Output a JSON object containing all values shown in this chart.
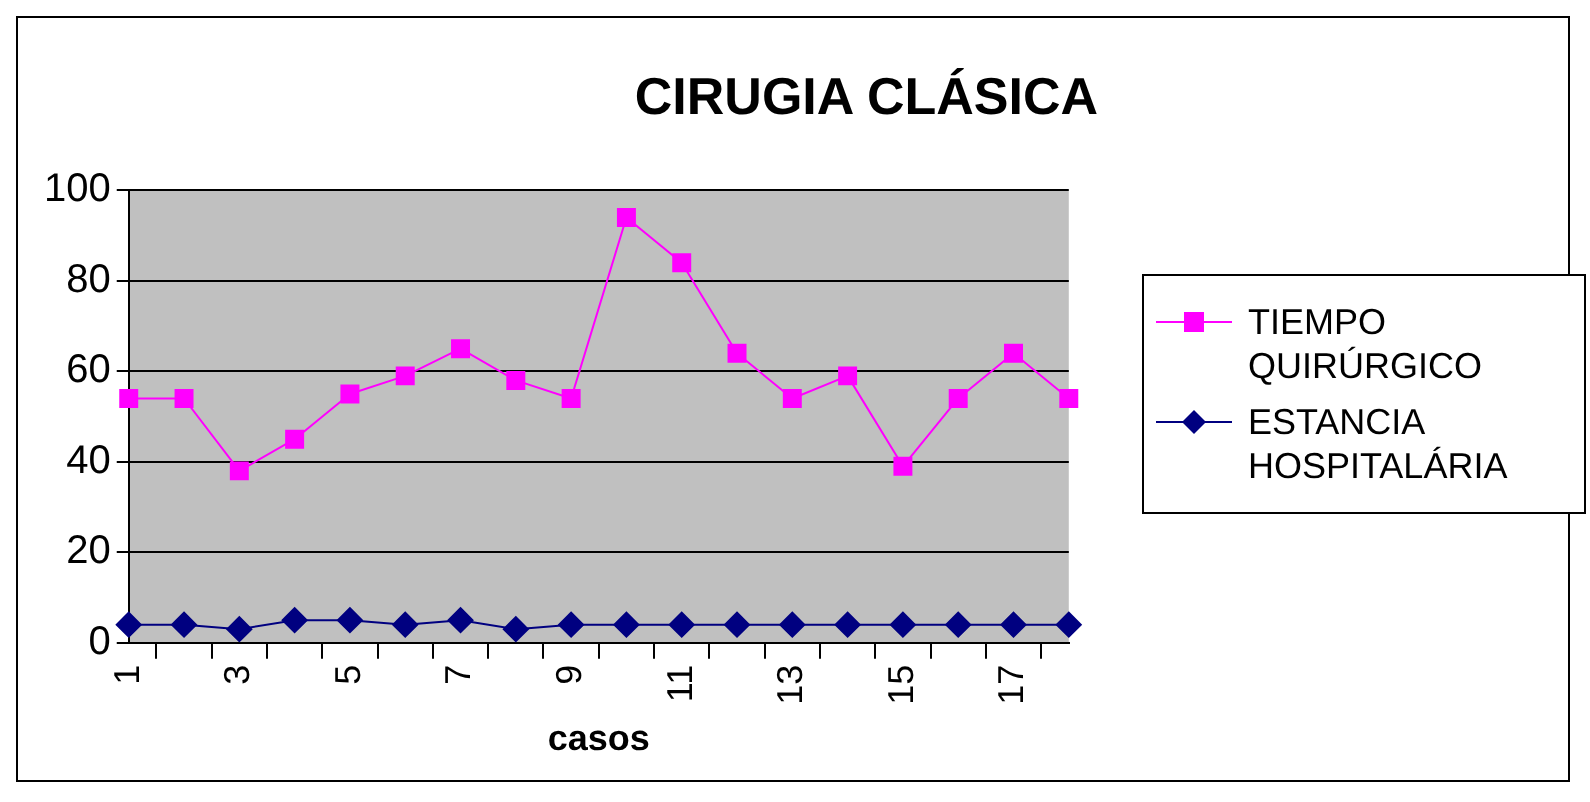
{
  "chart_data": {
    "type": "line",
    "title": "CIRUGIA CLÁSICA",
    "xlabel": "casos",
    "categories": [
      "1",
      null,
      "3",
      null,
      "5",
      null,
      "7",
      null,
      "9",
      null,
      "11",
      null,
      "13",
      null,
      "15",
      null,
      "17",
      null
    ],
    "series": [
      {
        "name": "TIEMPO QUIRÚRGICO",
        "color": "#ff00ff",
        "marker": "square",
        "values": [
          54,
          54,
          38,
          45,
          55,
          59,
          65,
          58,
          54,
          94,
          84,
          64,
          54,
          59,
          39,
          54,
          64,
          54
        ]
      },
      {
        "name": "ESTANCIA HOSPITALÁRIA",
        "color": "#000080",
        "marker": "diamond",
        "values": [
          4,
          4,
          3,
          5,
          5,
          4,
          5,
          3,
          4,
          4,
          4,
          4,
          4,
          4,
          4,
          4,
          4,
          4
        ]
      }
    ],
    "ylim": [
      0,
      100
    ],
    "yticks": [
      0,
      20,
      40,
      60,
      80,
      100
    ],
    "grid": "y",
    "legend": "right"
  }
}
